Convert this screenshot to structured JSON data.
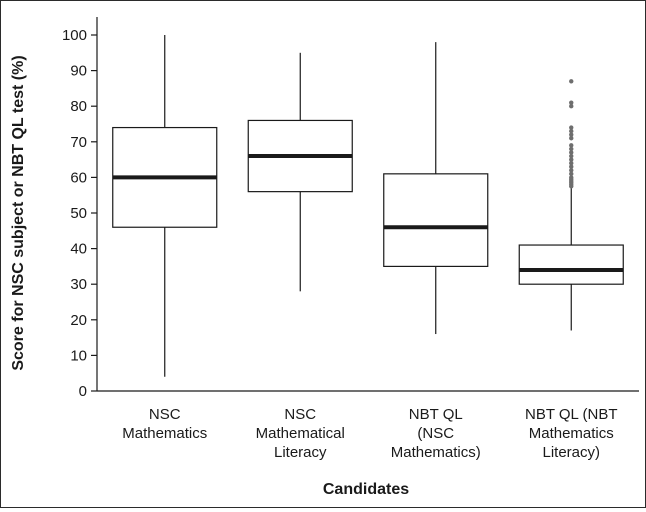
{
  "chart_data": {
    "type": "box",
    "title": "",
    "xlabel": "Candidates",
    "ylabel": "Score for NSC subject or NBT QL test (%)",
    "ylim": [
      0,
      100
    ],
    "yticks": [
      0,
      10,
      20,
      30,
      40,
      50,
      60,
      70,
      80,
      90,
      100
    ],
    "grid": false,
    "categories": [
      [
        "NSC",
        "Mathematics"
      ],
      [
        "NSC",
        "Mathematical",
        "Literacy"
      ],
      [
        "NBT QL",
        "(NSC",
        "Mathematics)"
      ],
      [
        "NBT QL (NBT",
        "Mathematics",
        "Literacy)"
      ]
    ],
    "boxes": [
      {
        "min": 4,
        "q1": 46,
        "median": 60,
        "q3": 74,
        "max": 100,
        "outliers": []
      },
      {
        "min": 28,
        "q1": 56,
        "median": 66,
        "q3": 76,
        "max": 95,
        "outliers": []
      },
      {
        "min": 16,
        "q1": 35,
        "median": 46,
        "q3": 61,
        "max": 98,
        "outliers": []
      },
      {
        "min": 17,
        "q1": 30,
        "median": 34,
        "q3": 41,
        "max": 57,
        "outliers": [
          57.5,
          58,
          58.5,
          59,
          59.5,
          60,
          61,
          62,
          63,
          64,
          65,
          66,
          67,
          68,
          69,
          71,
          72,
          73,
          74,
          80,
          81,
          87
        ]
      }
    ],
    "colors": {
      "box_fill": "#ffffff",
      "stroke": "#1a1a1a",
      "median": "#1a1a1a",
      "outlier": "#6e6e6e"
    }
  }
}
